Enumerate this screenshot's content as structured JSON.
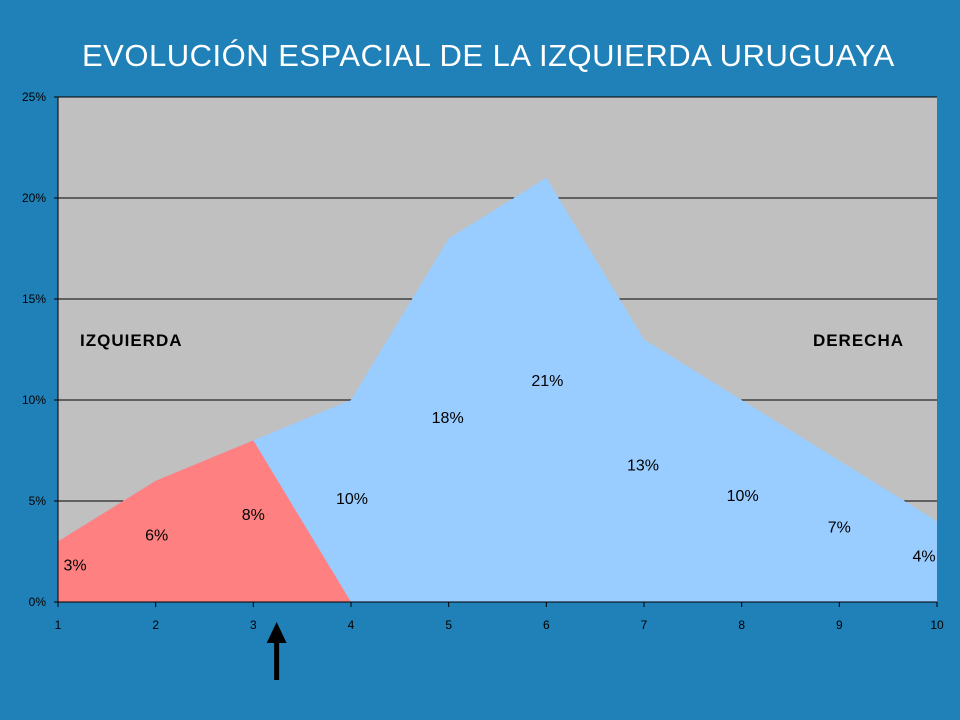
{
  "slide": {
    "title": "EVOLUCIÓN ESPACIAL DE LA IZQUIERDA URUGUAYA"
  },
  "chart_data": {
    "type": "area",
    "x": [
      1,
      2,
      3,
      4,
      5,
      6,
      7,
      8,
      9,
      10
    ],
    "xlim": [
      1,
      10
    ],
    "ylim": [
      0,
      0.25
    ],
    "y_ticks": [
      "0%",
      "5%",
      "10%",
      "15%",
      "20%",
      "25%"
    ],
    "x_ticks": [
      "1",
      "2",
      "3",
      "4",
      "5",
      "6",
      "7",
      "8",
      "9",
      "10"
    ],
    "series": [
      {
        "values": [
          0.03,
          0.06,
          0.08,
          0.1,
          0.18,
          0.21,
          0.13,
          0.1,
          0.07,
          0.04
        ],
        "color": "#99ccff"
      },
      {
        "values": [
          0.03,
          0.06,
          0.08,
          0,
          null,
          null,
          null,
          null,
          null,
          null
        ],
        "color": "#ff8080"
      }
    ],
    "data_labels": [
      "3%",
      "6%",
      "8%",
      "10%",
      "18%",
      "21%",
      "13%",
      "10%",
      "7%",
      "4%"
    ],
    "annotations": {
      "left": "IZQUIERDA",
      "right": "DERECHA"
    },
    "marker": {
      "x": 3.3,
      "shape": "up-arrow-below-axis"
    },
    "plot_background": "#c0c0c0",
    "grid": true
  }
}
